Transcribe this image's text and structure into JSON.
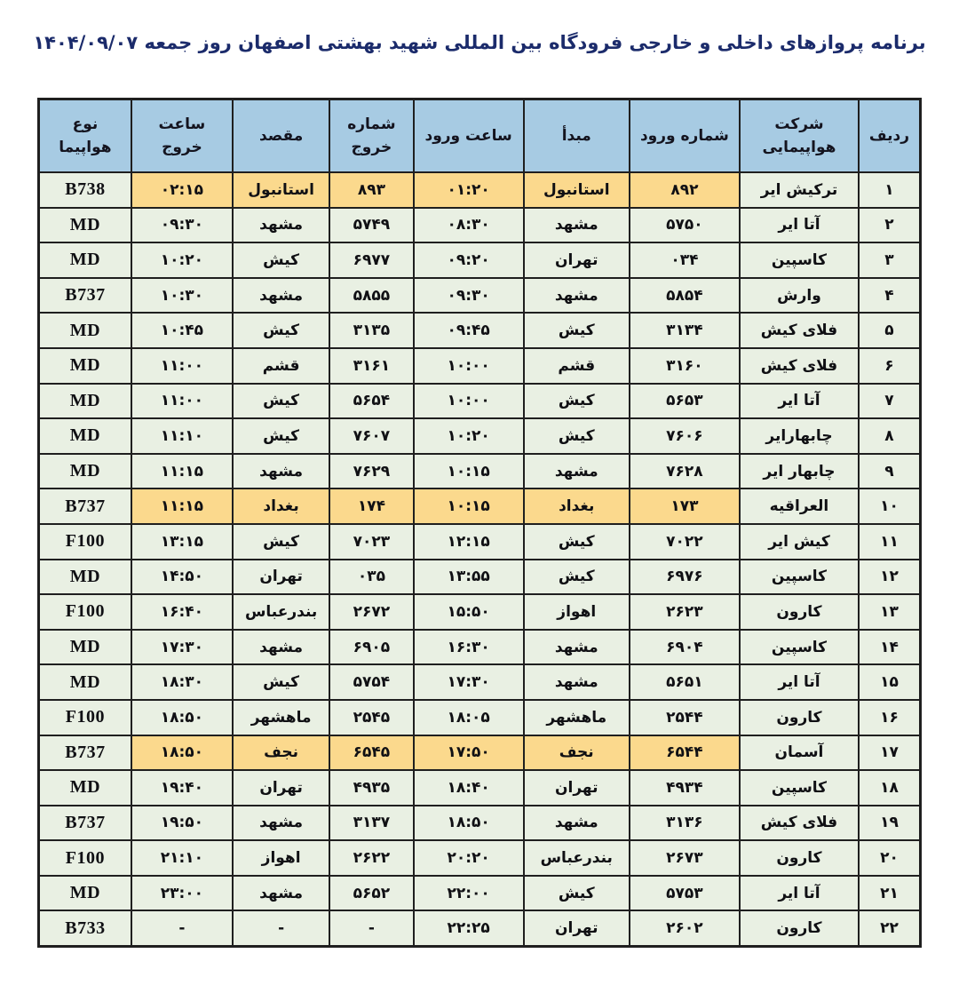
{
  "title": "برنامه پروازهای داخلی و خارجی فرودگاه بین المللی شهید بهشتی اصفهان روز جمعه ۱۴۰۴/۰۹/۰۷",
  "colors": {
    "title_color": "#1B2B6B",
    "header_bg": "#A7CBE3",
    "row_bg": "#E9F0E3",
    "highlight_bg": "#FBD98D",
    "border": "#1f1f1f"
  },
  "table": {
    "highlight_keys": [
      "arr_no",
      "origin",
      "arr_time",
      "dep_no",
      "dest",
      "dep_time"
    ],
    "columns": [
      {
        "key": "no",
        "label": "ردیف",
        "name": "col-row-number"
      },
      {
        "key": "airline",
        "label": "شرکت\nهواپیمایی",
        "name": "col-airline"
      },
      {
        "key": "arr_no",
        "label": "شماره ورود",
        "name": "col-arrival-number"
      },
      {
        "key": "origin",
        "label": "مبدأ",
        "name": "col-origin"
      },
      {
        "key": "arr_time",
        "label": "ساعت ورود",
        "name": "col-arrival-time"
      },
      {
        "key": "dep_no",
        "label": "شماره\nخروج",
        "name": "col-departure-number"
      },
      {
        "key": "dest",
        "label": "مقصد",
        "name": "col-destination"
      },
      {
        "key": "dep_time",
        "label": "ساعت\nخروج",
        "name": "col-departure-time"
      },
      {
        "key": "aircraft",
        "label": "نوع\nهواپیما",
        "name": "col-aircraft-type"
      }
    ],
    "rows": [
      {
        "no": "۱",
        "airline": "ترکیش ایر",
        "arr_no": "۸۹۲",
        "origin": "استانبول",
        "arr_time": "۰۱:۲۰",
        "dep_no": "۸۹۳",
        "dest": "استانبول",
        "dep_time": "۰۲:۱۵",
        "aircraft": "B738",
        "intl": true
      },
      {
        "no": "۲",
        "airline": "آتا ایر",
        "arr_no": "۵۷۵۰",
        "origin": "مشهد",
        "arr_time": "۰۸:۳۰",
        "dep_no": "۵۷۴۹",
        "dest": "مشهد",
        "dep_time": "۰۹:۳۰",
        "aircraft": "MD",
        "intl": false
      },
      {
        "no": "۳",
        "airline": "کاسپین",
        "arr_no": "۰۳۴",
        "origin": "تهران",
        "arr_time": "۰۹:۲۰",
        "dep_no": "۶۹۷۷",
        "dest": "کیش",
        "dep_time": "۱۰:۲۰",
        "aircraft": "MD",
        "intl": false
      },
      {
        "no": "۴",
        "airline": "وارش",
        "arr_no": "۵۸۵۴",
        "origin": "مشهد",
        "arr_time": "۰۹:۳۰",
        "dep_no": "۵۸۵۵",
        "dest": "مشهد",
        "dep_time": "۱۰:۳۰",
        "aircraft": "B737",
        "intl": false
      },
      {
        "no": "۵",
        "airline": "فلای کیش",
        "arr_no": "۳۱۳۴",
        "origin": "کیش",
        "arr_time": "۰۹:۴۵",
        "dep_no": "۳۱۳۵",
        "dest": "کیش",
        "dep_time": "۱۰:۴۵",
        "aircraft": "MD",
        "intl": false
      },
      {
        "no": "۶",
        "airline": "فلای کیش",
        "arr_no": "۳۱۶۰",
        "origin": "قشم",
        "arr_time": "۱۰:۰۰",
        "dep_no": "۳۱۶۱",
        "dest": "قشم",
        "dep_time": "۱۱:۰۰",
        "aircraft": "MD",
        "intl": false
      },
      {
        "no": "۷",
        "airline": "آتا ایر",
        "arr_no": "۵۶۵۳",
        "origin": "کیش",
        "arr_time": "۱۰:۰۰",
        "dep_no": "۵۶۵۴",
        "dest": "کیش",
        "dep_time": "۱۱:۰۰",
        "aircraft": "MD",
        "intl": false
      },
      {
        "no": "۸",
        "airline": "چابهارایر",
        "arr_no": "۷۶۰۶",
        "origin": "کیش",
        "arr_time": "۱۰:۲۰",
        "dep_no": "۷۶۰۷",
        "dest": "کیش",
        "dep_time": "۱۱:۱۰",
        "aircraft": "MD",
        "intl": false
      },
      {
        "no": "۹",
        "airline": "چابهار ایر",
        "arr_no": "۷۶۲۸",
        "origin": "مشهد",
        "arr_time": "۱۰:۱۵",
        "dep_no": "۷۶۲۹",
        "dest": "مشهد",
        "dep_time": "۱۱:۱۵",
        "aircraft": "MD",
        "intl": false
      },
      {
        "no": "۱۰",
        "airline": "العراقیه",
        "arr_no": "۱۷۳",
        "origin": "بغداد",
        "arr_time": "۱۰:۱۵",
        "dep_no": "۱۷۴",
        "dest": "بغداد",
        "dep_time": "۱۱:۱۵",
        "aircraft": "B737",
        "intl": true
      },
      {
        "no": "۱۱",
        "airline": "کیش ایر",
        "arr_no": "۷۰۲۲",
        "origin": "کیش",
        "arr_time": "۱۲:۱۵",
        "dep_no": "۷۰۲۳",
        "dest": "کیش",
        "dep_time": "۱۳:۱۵",
        "aircraft": "F100",
        "intl": false
      },
      {
        "no": "۱۲",
        "airline": "کاسپین",
        "arr_no": "۶۹۷۶",
        "origin": "کیش",
        "arr_time": "۱۳:۵۵",
        "dep_no": "۰۳۵",
        "dest": "تهران",
        "dep_time": "۱۴:۵۰",
        "aircraft": "MD",
        "intl": false
      },
      {
        "no": "۱۳",
        "airline": "کارون",
        "arr_no": "۲۶۲۳",
        "origin": "اهواز",
        "arr_time": "۱۵:۵۰",
        "dep_no": "۲۶۷۲",
        "dest": "بندرعباس",
        "dep_time": "۱۶:۴۰",
        "aircraft": "F100",
        "intl": false
      },
      {
        "no": "۱۴",
        "airline": "کاسپین",
        "arr_no": "۶۹۰۴",
        "origin": "مشهد",
        "arr_time": "۱۶:۳۰",
        "dep_no": "۶۹۰۵",
        "dest": "مشهد",
        "dep_time": "۱۷:۳۰",
        "aircraft": "MD",
        "intl": false
      },
      {
        "no": "۱۵",
        "airline": "آتا ایر",
        "arr_no": "۵۶۵۱",
        "origin": "مشهد",
        "arr_time": "۱۷:۳۰",
        "dep_no": "۵۷۵۴",
        "dest": "کیش",
        "dep_time": "۱۸:۳۰",
        "aircraft": "MD",
        "intl": false
      },
      {
        "no": "۱۶",
        "airline": "کارون",
        "arr_no": "۲۵۴۴",
        "origin": "ماهشهر",
        "arr_time": "۱۸:۰۵",
        "dep_no": "۲۵۴۵",
        "dest": "ماهشهر",
        "dep_time": "۱۸:۵۰",
        "aircraft": "F100",
        "intl": false
      },
      {
        "no": "۱۷",
        "airline": "آسمان",
        "arr_no": "۶۵۴۴",
        "origin": "نجف",
        "arr_time": "۱۷:۵۰",
        "dep_no": "۶۵۴۵",
        "dest": "نجف",
        "dep_time": "۱۸:۵۰",
        "aircraft": "B737",
        "intl": true
      },
      {
        "no": "۱۸",
        "airline": "کاسپین",
        "arr_no": "۴۹۳۴",
        "origin": "تهران",
        "arr_time": "۱۸:۴۰",
        "dep_no": "۴۹۳۵",
        "dest": "تهران",
        "dep_time": "۱۹:۴۰",
        "aircraft": "MD",
        "intl": false
      },
      {
        "no": "۱۹",
        "airline": "فلای کیش",
        "arr_no": "۳۱۳۶",
        "origin": "مشهد",
        "arr_time": "۱۸:۵۰",
        "dep_no": "۳۱۳۷",
        "dest": "مشهد",
        "dep_time": "۱۹:۵۰",
        "aircraft": "B737",
        "intl": false
      },
      {
        "no": "۲۰",
        "airline": "کارون",
        "arr_no": "۲۶۷۳",
        "origin": "بندرعباس",
        "arr_time": "۲۰:۲۰",
        "dep_no": "۲۶۲۲",
        "dest": "اهواز",
        "dep_time": "۲۱:۱۰",
        "aircraft": "F100",
        "intl": false
      },
      {
        "no": "۲۱",
        "airline": "آتا ایر",
        "arr_no": "۵۷۵۳",
        "origin": "کیش",
        "arr_time": "۲۲:۰۰",
        "dep_no": "۵۶۵۲",
        "dest": "مشهد",
        "dep_time": "۲۳:۰۰",
        "aircraft": "MD",
        "intl": false
      },
      {
        "no": "۲۲",
        "airline": "کارون",
        "arr_no": "۲۶۰۲",
        "origin": "تهران",
        "arr_time": "۲۲:۲۵",
        "dep_no": "-",
        "dest": "-",
        "dep_time": "-",
        "aircraft": "B733",
        "intl": false
      }
    ]
  }
}
